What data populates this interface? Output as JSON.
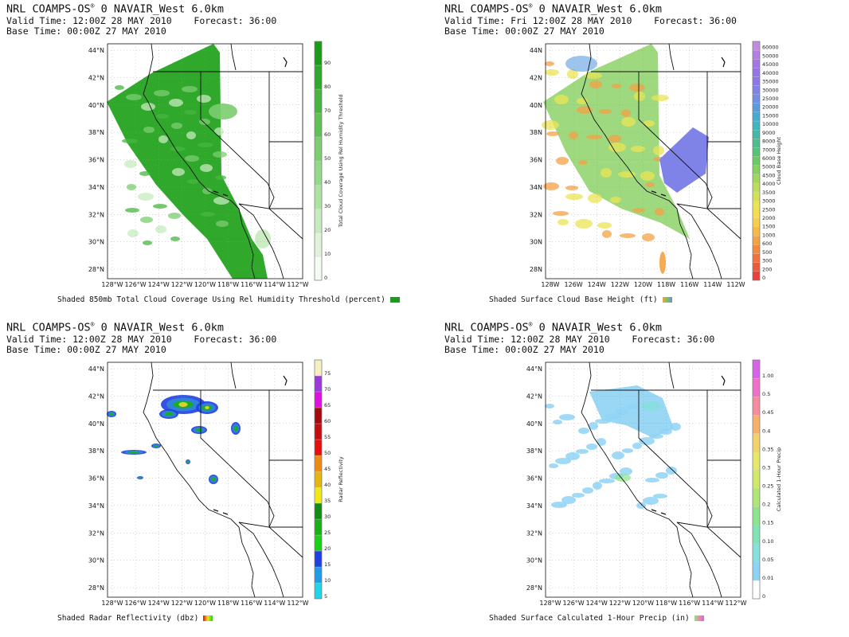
{
  "panels": [
    {
      "id": "cloud-cover",
      "title_prefix": "NRL COAMPS-OS",
      "title_mark": "®",
      "title_suffix": " 0 NAVAIR_West 6.0km",
      "valid_line": "Valid Time: 12:00Z 28 MAY 2010    Forecast: 36:00",
      "base_line": "Base Time: 00:00Z 27 MAY 2010",
      "caption": "Shaded 850mb Total Cloud Coverage Using Rel Humidity Threshold (percent)",
      "colorbar_title": "Total Cloud Coverage Using Rel Humidity Threshold",
      "colorbar_ticks": [
        "0",
        "10",
        "20",
        "30",
        "40",
        "50",
        "60",
        "70",
        "80",
        "90"
      ],
      "colorbar_colors": [
        "#f4fbf2",
        "#dff3da",
        "#c6ebbe",
        "#aee2a3",
        "#94d889",
        "#7bcd70",
        "#60c157",
        "#48b540",
        "#2fa82b",
        "#1a9c1a"
      ],
      "chip_colors": [
        "#1a9c1a"
      ],
      "fill_colors": [
        "#2fa82b",
        "#48b540",
        "#7bcd70",
        "#c6ebbe"
      ]
    },
    {
      "id": "cloud-base",
      "title_prefix": "NRL COAMPS-OS",
      "title_mark": "®",
      "title_suffix": " 0 NAVAIR_West 6.0km",
      "valid_line": "Valid Time: Fri 12:00Z 28 MAY 2010    Forecast: 36:00",
      "base_line": "Base Time: 00:00Z 27 MAY 2010",
      "caption": "Shaded Surface Cloud Base Height (ft)",
      "colorbar_title": "Cloud Base Height",
      "colorbar_ticks": [
        "0",
        "200",
        "300",
        "500",
        "600",
        "1000",
        "1500",
        "2000",
        "2500",
        "3000",
        "3500",
        "4000",
        "4500",
        "5000",
        "6000",
        "7000",
        "8000",
        "9000",
        "10000",
        "15000",
        "20000",
        "25000",
        "30000",
        "35000",
        "40000",
        "45000",
        "50000",
        "60000"
      ],
      "colorbar_colors": [
        "#e8403c",
        "#ec5a3d",
        "#ef723f",
        "#f28a41",
        "#f4a244",
        "#f6b847",
        "#f7cd4a",
        "#f5dd4e",
        "#e9e453",
        "#d4e157",
        "#bcdd5a",
        "#a2d75d",
        "#86d060",
        "#6cc964",
        "#56c276",
        "#4bbd8e",
        "#43b9a6",
        "#3db6bd",
        "#45abd2",
        "#5a9ddf",
        "#6e8fe4",
        "#7f82e6",
        "#8b78e7",
        "#9774e6",
        "#a576e4",
        "#b47fe0",
        "#c28cdc"
      ],
      "chip_colors": [
        "#f4a244",
        "#6cc964",
        "#7f82e6"
      ],
      "fill_colors": [
        "#86d060",
        "#f4a244",
        "#e9e453",
        "#7f82e6"
      ],
      "x_ticks": [
        "128W",
        "126W",
        "124W",
        "122W",
        "120W",
        "118W",
        "116W",
        "114W",
        "112W"
      ],
      "y_ticks": [
        "28N",
        "30N",
        "32N",
        "34N",
        "36N",
        "38N",
        "40N",
        "42N",
        "44N"
      ]
    },
    {
      "id": "radar",
      "title_prefix": "NRL COAMPS-OS",
      "title_mark": "®",
      "title_suffix": " 0 NAVAIR_West 6.0km",
      "valid_line": "Valid Time: 12:00Z 28 MAY 2010    Forecast: 36:00",
      "base_line": "Base Time: 00:00Z 27 MAY 2010",
      "caption": "Shaded Radar Reflectivity (dbz)",
      "colorbar_title": "Radar Reflectivity",
      "colorbar_ticks": [
        "5",
        "10",
        "15",
        "20",
        "25",
        "30",
        "35",
        "40",
        "45",
        "50",
        "55",
        "60",
        "65",
        "70",
        "75"
      ],
      "colorbar_colors": [
        "#22d4e6",
        "#1f9be8",
        "#1f3fe0",
        "#1bcf1a",
        "#18b018",
        "#128c12",
        "#f2e818",
        "#e6b512",
        "#f08a14",
        "#e5100e",
        "#c60d0d",
        "#a40a0a",
        "#e010e0",
        "#9a3ad8",
        "#f6f0c0"
      ],
      "chip_colors": [
        "#e5100e",
        "#f2e818",
        "#1bcf1a"
      ],
      "fill_colors": [
        "#2f86d8",
        "#18b018",
        "#e6d22c",
        "#1f3fe0"
      ]
    },
    {
      "id": "precip",
      "title_prefix": "NRL COAMPS-OS",
      "title_mark": "®",
      "title_suffix": " 0 NAVAIR_West 6.0km",
      "valid_line": "Valid Time: 12:00Z 28 MAY 2010    Forecast: 36:00",
      "base_line": "Base Time: 00:00Z 27 MAY 2010",
      "caption": "Shaded Surface Calculated 1-Hour Precip (in)",
      "colorbar_title": "Calculated 1-Hour Precip",
      "colorbar_ticks": [
        "0",
        "0.01",
        "0.05",
        "0.10",
        "0.15",
        "0.2",
        "0.25",
        "0.3",
        "0.35",
        "0.4",
        "0.45",
        "0.5",
        "1.00"
      ],
      "colorbar_colors": [
        "#ffffff",
        "#8fd3f4",
        "#86e0dc",
        "#7fe3b6",
        "#8ee38f",
        "#aee678",
        "#cfe86a",
        "#e6e86a",
        "#f2d26a",
        "#f6b06a",
        "#f58aa0",
        "#f070c8",
        "#d663e6"
      ],
      "chip_colors": [
        "#8ee38f",
        "#f58aa0",
        "#d663e6"
      ],
      "fill_colors": [
        "#8fd3f4",
        "#86e0dc",
        "#8ee38f"
      ]
    }
  ],
  "x_ticks": [
    "128°W",
    "126°W",
    "124°W",
    "122°W",
    "120°W",
    "118°W",
    "116°W",
    "114°W",
    "112°W"
  ],
  "y_ticks": [
    "28°N",
    "30°N",
    "32°N",
    "34°N",
    "36°N",
    "38°N",
    "40°N",
    "42°N",
    "44°N"
  ]
}
